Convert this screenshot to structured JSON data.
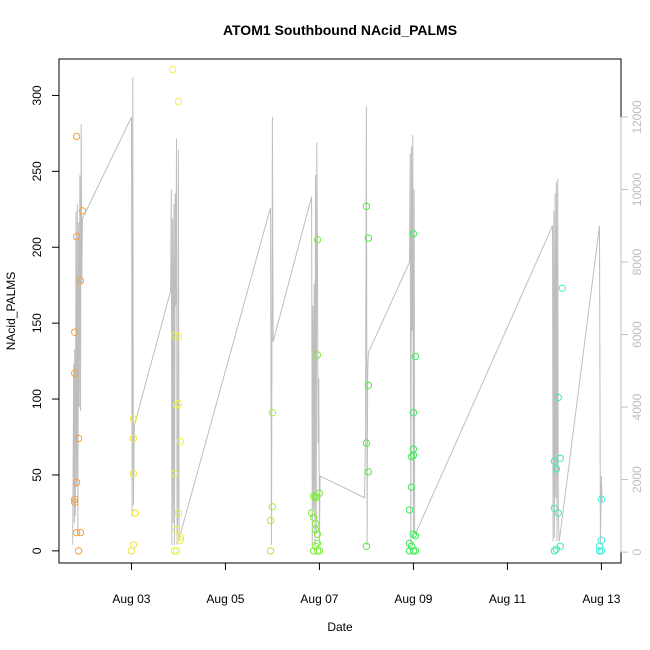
{
  "chart_data": {
    "type": "scatter",
    "title": "ATOM1 Southbound NAcid_PALMS",
    "xlabel": "Date",
    "ylabel": "NAcid_PALMS",
    "x_axis": {
      "unit": "date",
      "range": [
        "2016-08-01T11:00",
        "2016-08-13T10:00"
      ],
      "ticks": [
        {
          "x": "2016-08-03",
          "label": "Aug 03"
        },
        {
          "x": "2016-08-05",
          "label": "Aug 05"
        },
        {
          "x": "2016-08-07",
          "label": "Aug 07"
        },
        {
          "x": "2016-08-09",
          "label": "Aug 09"
        },
        {
          "x": "2016-08-11",
          "label": "Aug 11"
        },
        {
          "x": "2016-08-13",
          "label": "Aug 13"
        }
      ]
    },
    "y_axis": {
      "range": [
        -8,
        324
      ],
      "ticks": [
        {
          "y": 0,
          "label": "0"
        },
        {
          "y": 50,
          "label": "50"
        },
        {
          "y": 100,
          "label": "100"
        },
        {
          "y": 150,
          "label": "150"
        },
        {
          "y": 200,
          "label": "200"
        },
        {
          "y": 250,
          "label": "250"
        },
        {
          "y": 300,
          "label": "300"
        }
      ]
    },
    "y2_axis": {
      "range": [
        -300,
        13600
      ],
      "color": "#bebebe",
      "ticks": [
        {
          "y": 0,
          "label": "0"
        },
        {
          "y": 2000,
          "label": "2000"
        },
        {
          "y": 4000,
          "label": "4000"
        },
        {
          "y": 6000,
          "label": "6000"
        },
        {
          "y": 8000,
          "label": "8000"
        },
        {
          "y": 10000,
          "label": "10000"
        },
        {
          "y": 12000,
          "label": "12000"
        }
      ]
    },
    "grid": false,
    "legend": "none",
    "points": [
      {
        "x": "2016-08-01T20:00",
        "y": 273,
        "color": "#f5a040"
      },
      {
        "x": "2016-08-01T20:00",
        "y": 207,
        "color": "#f5a040"
      },
      {
        "x": "2016-08-01T19:00",
        "y": 144,
        "color": "#f5a040"
      },
      {
        "x": "2016-08-01T19:00",
        "y": 117,
        "color": "#f5a040"
      },
      {
        "x": "2016-08-01T23:00",
        "y": 224,
        "color": "#f5a040"
      },
      {
        "x": "2016-08-01T22:00",
        "y": 178,
        "color": "#f5a040"
      },
      {
        "x": "2016-08-01T21:00",
        "y": 74,
        "color": "#f5a040"
      },
      {
        "x": "2016-08-01T20:00",
        "y": 45,
        "color": "#f5a040"
      },
      {
        "x": "2016-08-01T19:00",
        "y": 34,
        "color": "#f5a040"
      },
      {
        "x": "2016-08-01T19:00",
        "y": 32,
        "color": "#f5a040"
      },
      {
        "x": "2016-08-01T20:00",
        "y": 12,
        "color": "#f5a040"
      },
      {
        "x": "2016-08-01T22:00",
        "y": 12,
        "color": "#f5a040"
      },
      {
        "x": "2016-08-01T21:00",
        "y": 0,
        "color": "#f5a040"
      },
      {
        "x": "2016-08-03T01:00",
        "y": 87,
        "color": "#f0e640"
      },
      {
        "x": "2016-08-03T01:00",
        "y": 74,
        "color": "#f0e640"
      },
      {
        "x": "2016-08-03T01:00",
        "y": 51,
        "color": "#f0e640"
      },
      {
        "x": "2016-08-03T02:00",
        "y": 25,
        "color": "#f0e640"
      },
      {
        "x": "2016-08-03T02:00",
        "y": 25,
        "color": "#f0e640"
      },
      {
        "x": "2016-08-03T01:00",
        "y": 4,
        "color": "#f0e640"
      },
      {
        "x": "2016-08-03T00:00",
        "y": 0,
        "color": "#f0e640"
      },
      {
        "x": "2016-08-03T21:00",
        "y": 317,
        "color": "#f0f040"
      },
      {
        "x": "2016-08-04T00:00",
        "y": 296,
        "color": "#f0f040"
      },
      {
        "x": "2016-08-03T22:00",
        "y": 142,
        "color": "#f0f040"
      },
      {
        "x": "2016-08-04T00:00",
        "y": 141,
        "color": "#f0f040"
      },
      {
        "x": "2016-08-04T00:00",
        "y": 97,
        "color": "#f0f040"
      },
      {
        "x": "2016-08-03T23:00",
        "y": 96,
        "color": "#f0f040"
      },
      {
        "x": "2016-08-04T01:00",
        "y": 72,
        "color": "#f0f040"
      },
      {
        "x": "2016-08-03T22:00",
        "y": 51,
        "color": "#f0f040"
      },
      {
        "x": "2016-08-04T00:00",
        "y": 25,
        "color": "#f0f040"
      },
      {
        "x": "2016-08-03T23:00",
        "y": 14,
        "color": "#f0f040"
      },
      {
        "x": "2016-08-04T01:00",
        "y": 9,
        "color": "#f0f040"
      },
      {
        "x": "2016-08-04T01:00",
        "y": 7,
        "color": "#f0f040"
      },
      {
        "x": "2016-08-03T22:00",
        "y": 0,
        "color": "#f0f040"
      },
      {
        "x": "2016-08-03T23:00",
        "y": 0,
        "color": "#f0f040"
      },
      {
        "x": "2016-08-06T00:00",
        "y": 91,
        "color": "#a8ec40"
      },
      {
        "x": "2016-08-06T00:00",
        "y": 29,
        "color": "#a8ec40"
      },
      {
        "x": "2016-08-05T23:00",
        "y": 20,
        "color": "#a8ec40"
      },
      {
        "x": "2016-08-05T23:00",
        "y": 0,
        "color": "#a8ec40"
      },
      {
        "x": "2016-08-06T23:00",
        "y": 205,
        "color": "#80ec40"
      },
      {
        "x": "2016-08-06T23:00",
        "y": 129,
        "color": "#80ec40"
      },
      {
        "x": "2016-08-07T00:00",
        "y": 38,
        "color": "#80ec40"
      },
      {
        "x": "2016-08-06T21:00",
        "y": 36,
        "color": "#80ec40"
      },
      {
        "x": "2016-08-06T22:00",
        "y": 36,
        "color": "#80ec40"
      },
      {
        "x": "2016-08-06T22:00",
        "y": 35,
        "color": "#80ec40"
      },
      {
        "x": "2016-08-06T20:00",
        "y": 25,
        "color": "#80ec40"
      },
      {
        "x": "2016-08-06T21:00",
        "y": 22,
        "color": "#80ec40"
      },
      {
        "x": "2016-08-06T22:00",
        "y": 18,
        "color": "#80ec40"
      },
      {
        "x": "2016-08-06T22:00",
        "y": 14,
        "color": "#80ec40"
      },
      {
        "x": "2016-08-06T23:00",
        "y": 11,
        "color": "#80ec40"
      },
      {
        "x": "2016-08-06T23:00",
        "y": 5,
        "color": "#80ec40"
      },
      {
        "x": "2016-08-06T22:00",
        "y": 3,
        "color": "#80ec40"
      },
      {
        "x": "2016-08-06T21:00",
        "y": 0,
        "color": "#80ec40"
      },
      {
        "x": "2016-08-06T23:00",
        "y": 0,
        "color": "#80ec40"
      },
      {
        "x": "2016-08-07T00:00",
        "y": 0,
        "color": "#80ec40"
      },
      {
        "x": "2016-08-08T00:00",
        "y": 227,
        "color": "#50ec40"
      },
      {
        "x": "2016-08-08T01:00",
        "y": 206,
        "color": "#50ec40"
      },
      {
        "x": "2016-08-08T01:00",
        "y": 109,
        "color": "#50ec40"
      },
      {
        "x": "2016-08-08T00:00",
        "y": 71,
        "color": "#50ec40"
      },
      {
        "x": "2016-08-08T01:00",
        "y": 52,
        "color": "#50ec40"
      },
      {
        "x": "2016-08-08T00:00",
        "y": 3,
        "color": "#50ec40"
      },
      {
        "x": "2016-08-09T00:00",
        "y": 209,
        "color": "#40ec58"
      },
      {
        "x": "2016-08-09T01:00",
        "y": 128,
        "color": "#40ec58"
      },
      {
        "x": "2016-08-09T00:00",
        "y": 91,
        "color": "#40ec58"
      },
      {
        "x": "2016-08-09T00:00",
        "y": 67,
        "color": "#40ec58"
      },
      {
        "x": "2016-08-08T23:00",
        "y": 62,
        "color": "#40ec58"
      },
      {
        "x": "2016-08-09T00:00",
        "y": 63,
        "color": "#40ec58"
      },
      {
        "x": "2016-08-08T23:00",
        "y": 42,
        "color": "#40ec58"
      },
      {
        "x": "2016-08-08T22:00",
        "y": 27,
        "color": "#40ec58"
      },
      {
        "x": "2016-08-09T00:00",
        "y": 11,
        "color": "#40ec58"
      },
      {
        "x": "2016-08-09T01:00",
        "y": 10,
        "color": "#40ec58"
      },
      {
        "x": "2016-08-08T22:00",
        "y": 5,
        "color": "#40ec58"
      },
      {
        "x": "2016-08-08T23:00",
        "y": 3,
        "color": "#40ec58"
      },
      {
        "x": "2016-08-08T22:00",
        "y": 0,
        "color": "#40ec58"
      },
      {
        "x": "2016-08-09T00:00",
        "y": 0,
        "color": "#40ec58"
      },
      {
        "x": "2016-08-09T01:00",
        "y": 0,
        "color": "#40ec58"
      },
      {
        "x": "2016-08-12T02:00",
        "y": 101,
        "color": "#40eca8"
      },
      {
        "x": "2016-08-12T00:00",
        "y": 59,
        "color": "#40eca8"
      },
      {
        "x": "2016-08-12T03:00",
        "y": 61,
        "color": "#40eca8"
      },
      {
        "x": "2016-08-12T01:00",
        "y": 54,
        "color": "#40eca8"
      },
      {
        "x": "2016-08-12T00:00",
        "y": 28,
        "color": "#40eca8"
      },
      {
        "x": "2016-08-12T02:00",
        "y": 25,
        "color": "#40eca8"
      },
      {
        "x": "2016-08-12T03:00",
        "y": 3,
        "color": "#40eca8"
      },
      {
        "x": "2016-08-12T00:00",
        "y": 0,
        "color": "#40eca8"
      },
      {
        "x": "2016-08-12T01:00",
        "y": 1,
        "color": "#40eca8"
      },
      {
        "x": "2016-08-12T04:00",
        "y": 173,
        "color": "#40ecd0"
      },
      {
        "x": "2016-08-13T00:00",
        "y": 34,
        "color": "#40f0d8"
      },
      {
        "x": "2016-08-13T00:00",
        "y": 7,
        "color": "#40f0d8"
      },
      {
        "x": "2016-08-12T23:00",
        "y": 3,
        "color": "#40f0d8"
      },
      {
        "x": "2016-08-12T23:00",
        "y": 0,
        "color": "#40f0d8"
      },
      {
        "x": "2016-08-13T00:00",
        "y": 0,
        "color": "#40f0d8"
      }
    ],
    "secondary_line": {
      "axis": "y2",
      "color": "#bebebe",
      "x": [
        "2016-08-01T18:00",
        "2016-08-01T18:30",
        "2016-08-01T18:50",
        "2016-08-01T19:00",
        "2016-08-01T19:20",
        "2016-08-01T19:40",
        "2016-08-01T20:00",
        "2016-08-01T20:20",
        "2016-08-01T20:40",
        "2016-08-01T21:00",
        "2016-08-01T21:20",
        "2016-08-01T21:40",
        "2016-08-01T22:00",
        "2016-08-01T22:20",
        "2016-08-01T22:40",
        "2016-08-01T23:00",
        "2016-08-03T00:00",
        "2016-08-03T00:20",
        "2016-08-03T00:40",
        "2016-08-03T01:00",
        "2016-08-03T01:30",
        "2016-08-03T20:00",
        "2016-08-03T20:20",
        "2016-08-03T20:40",
        "2016-08-03T21:00",
        "2016-08-03T21:20",
        "2016-08-03T21:40",
        "2016-08-03T22:00",
        "2016-08-03T22:20",
        "2016-08-03T22:40",
        "2016-08-03T23:00",
        "2016-08-03T23:20",
        "2016-08-03T23:40",
        "2016-08-04T00:00",
        "2016-08-04T00:20",
        "2016-08-04T00:40",
        "2016-08-04T01:00",
        "2016-08-05T23:00",
        "2016-08-05T23:30",
        "2016-08-06T00:00",
        "2016-08-06T00:20",
        "2016-08-06T20:00",
        "2016-08-06T20:20",
        "2016-08-06T20:40",
        "2016-08-06T21:00",
        "2016-08-06T21:20",
        "2016-08-06T21:40",
        "2016-08-06T22:00",
        "2016-08-06T22:20",
        "2016-08-06T22:40",
        "2016-08-06T23:00",
        "2016-08-06T23:20",
        "2016-08-06T23:40",
        "2016-08-07T00:00",
        "2016-08-07T00:20",
        "2016-08-07T23:00",
        "2016-08-07T23:30",
        "2016-08-08T00:00",
        "2016-08-08T00:20",
        "2016-08-08T00:40",
        "2016-08-08T01:00",
        "2016-08-08T22:00",
        "2016-08-08T22:20",
        "2016-08-08T22:40",
        "2016-08-08T23:00",
        "2016-08-08T23:20",
        "2016-08-08T23:40",
        "2016-08-09T00:00",
        "2016-08-09T00:20",
        "2016-08-09T00:40",
        "2016-08-09T01:00",
        "2016-08-11T23:00",
        "2016-08-11T23:20",
        "2016-08-11T23:40",
        "2016-08-12T00:00",
        "2016-08-12T00:20",
        "2016-08-12T00:40",
        "2016-08-12T01:00",
        "2016-08-12T01:20",
        "2016-08-12T01:40",
        "2016-08-12T02:00",
        "2016-08-12T02:30",
        "2016-08-12T23:00",
        "2016-08-12T23:30",
        "2016-08-13T00:00",
        "2016-08-13T00:20"
      ],
      "y": [
        200,
        5200,
        800,
        5600,
        1000,
        9400,
        1800,
        9600,
        500,
        9100,
        4000,
        10400,
        3900,
        11800,
        7400,
        9200,
        12000,
        1000,
        13100,
        1300,
        3500,
        7200,
        10000,
        200,
        9200,
        800,
        9600,
        200,
        9900,
        6800,
        11400,
        200,
        1000,
        11100,
        300,
        500,
        500,
        9500,
        200,
        12000,
        5800,
        9800,
        200,
        6800,
        1200,
        7400,
        200,
        10400,
        500,
        11300,
        7800,
        3000,
        4800,
        200,
        2100,
        1500,
        3200,
        12300,
        200,
        5000,
        5500,
        8000,
        11000,
        200,
        11200,
        6100,
        11500,
        400,
        10000,
        500,
        500,
        9000,
        300,
        9400,
        400,
        9900,
        1500,
        10200,
        300,
        10300,
        1000,
        300,
        9000,
        200,
        2100,
        1400
      ]
    }
  }
}
